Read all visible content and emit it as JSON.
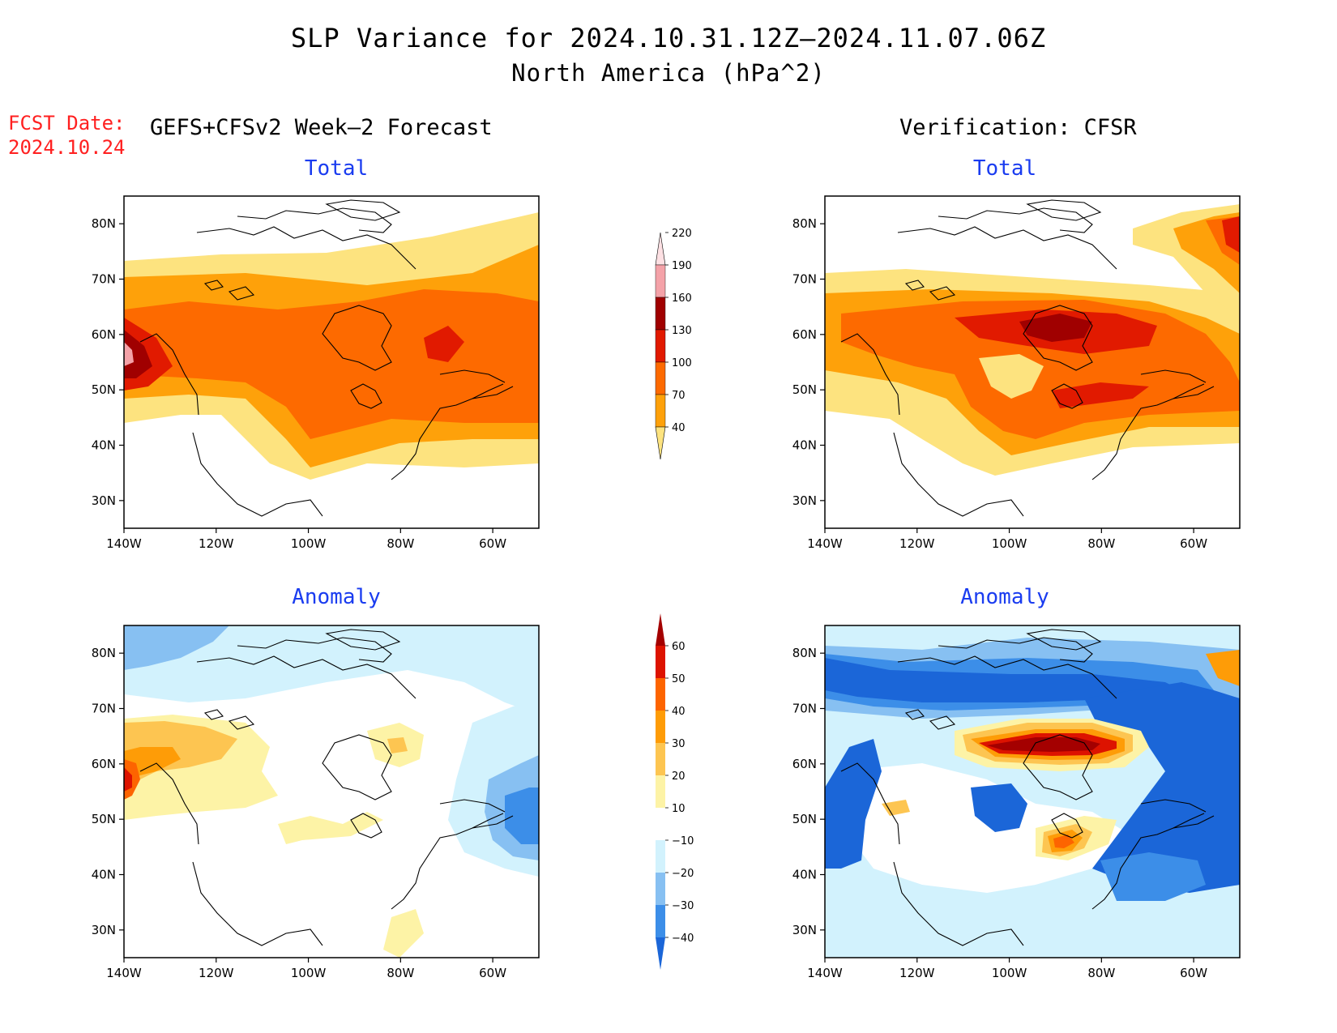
{
  "title": "SLP Variance for 2024.10.31.12Z–2024.11.07.06Z",
  "subtitle": "North America (hPa^2)",
  "fcst_date": {
    "label": "FCST Date:",
    "value": "2024.10.24"
  },
  "columns": {
    "forecast": "GEFS+CFSv2 Week–2 Forecast",
    "verification": "Verification: CFSR"
  },
  "panels": {
    "fcst_total": {
      "title": "Total"
    },
    "verif_total": {
      "title": "Total"
    },
    "fcst_anom": {
      "title": "Anomaly"
    },
    "verif_anom": {
      "title": "Anomaly"
    }
  },
  "axes": {
    "lon_labels": [
      "140W",
      "120W",
      "100W",
      "80W",
      "60W"
    ],
    "lat_labels": [
      "80N",
      "70N",
      "60N",
      "50N",
      "40N",
      "30N"
    ],
    "lon_range": [
      -140,
      -50
    ],
    "lat_range": [
      25,
      85
    ]
  },
  "colorbars": {
    "total": {
      "levels": [
        "40",
        "70",
        "100",
        "130",
        "160",
        "190",
        "220"
      ],
      "colors": [
        "#fde37f",
        "#fea10a",
        "#fd6a00",
        "#e11a00",
        "#a00000",
        "#f4a2a8",
        "#fde0e3"
      ]
    },
    "anomaly": {
      "levels": [
        "−40",
        "−30",
        "−20",
        "−10",
        "10",
        "20",
        "30",
        "40",
        "50",
        "60"
      ],
      "colors": [
        "#1b66d8",
        "#3c8ee8",
        "#87c0f2",
        "#d2f2fd",
        "#ffffff",
        "#fdf3a6",
        "#fdc551",
        "#fe9c07",
        "#fd6400",
        "#dd1300",
        "#a40000"
      ]
    }
  }
}
